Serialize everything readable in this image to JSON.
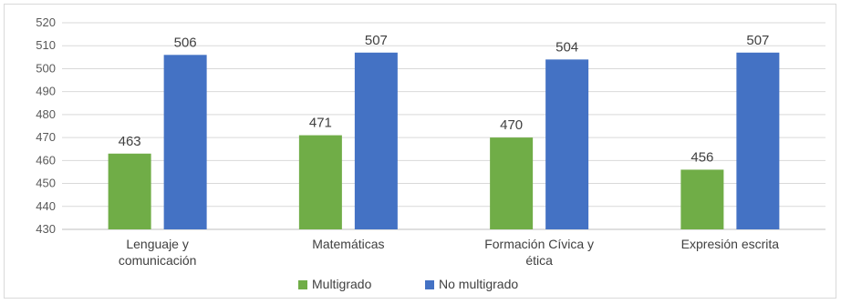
{
  "chart_data": {
    "type": "bar",
    "categories": [
      [
        "Lenguaje y",
        "comunicación"
      ],
      [
        "Matemáticas"
      ],
      [
        "Formación Cívica y",
        "ética"
      ],
      [
        "Expresión escrita"
      ]
    ],
    "series": [
      {
        "name": "Multigrado",
        "color": "#70ad47",
        "values": [
          463,
          471,
          470,
          456
        ]
      },
      {
        "name": "No multigrado",
        "color": "#4472c4",
        "values": [
          506,
          507,
          504,
          507
        ]
      }
    ],
    "ylim": [
      430,
      520
    ],
    "yticks": [
      430,
      440,
      450,
      460,
      470,
      480,
      490,
      500,
      510,
      520
    ],
    "grid": true,
    "gridColor": "#d9d9d9",
    "legend": "bottom",
    "data_labels": true
  }
}
